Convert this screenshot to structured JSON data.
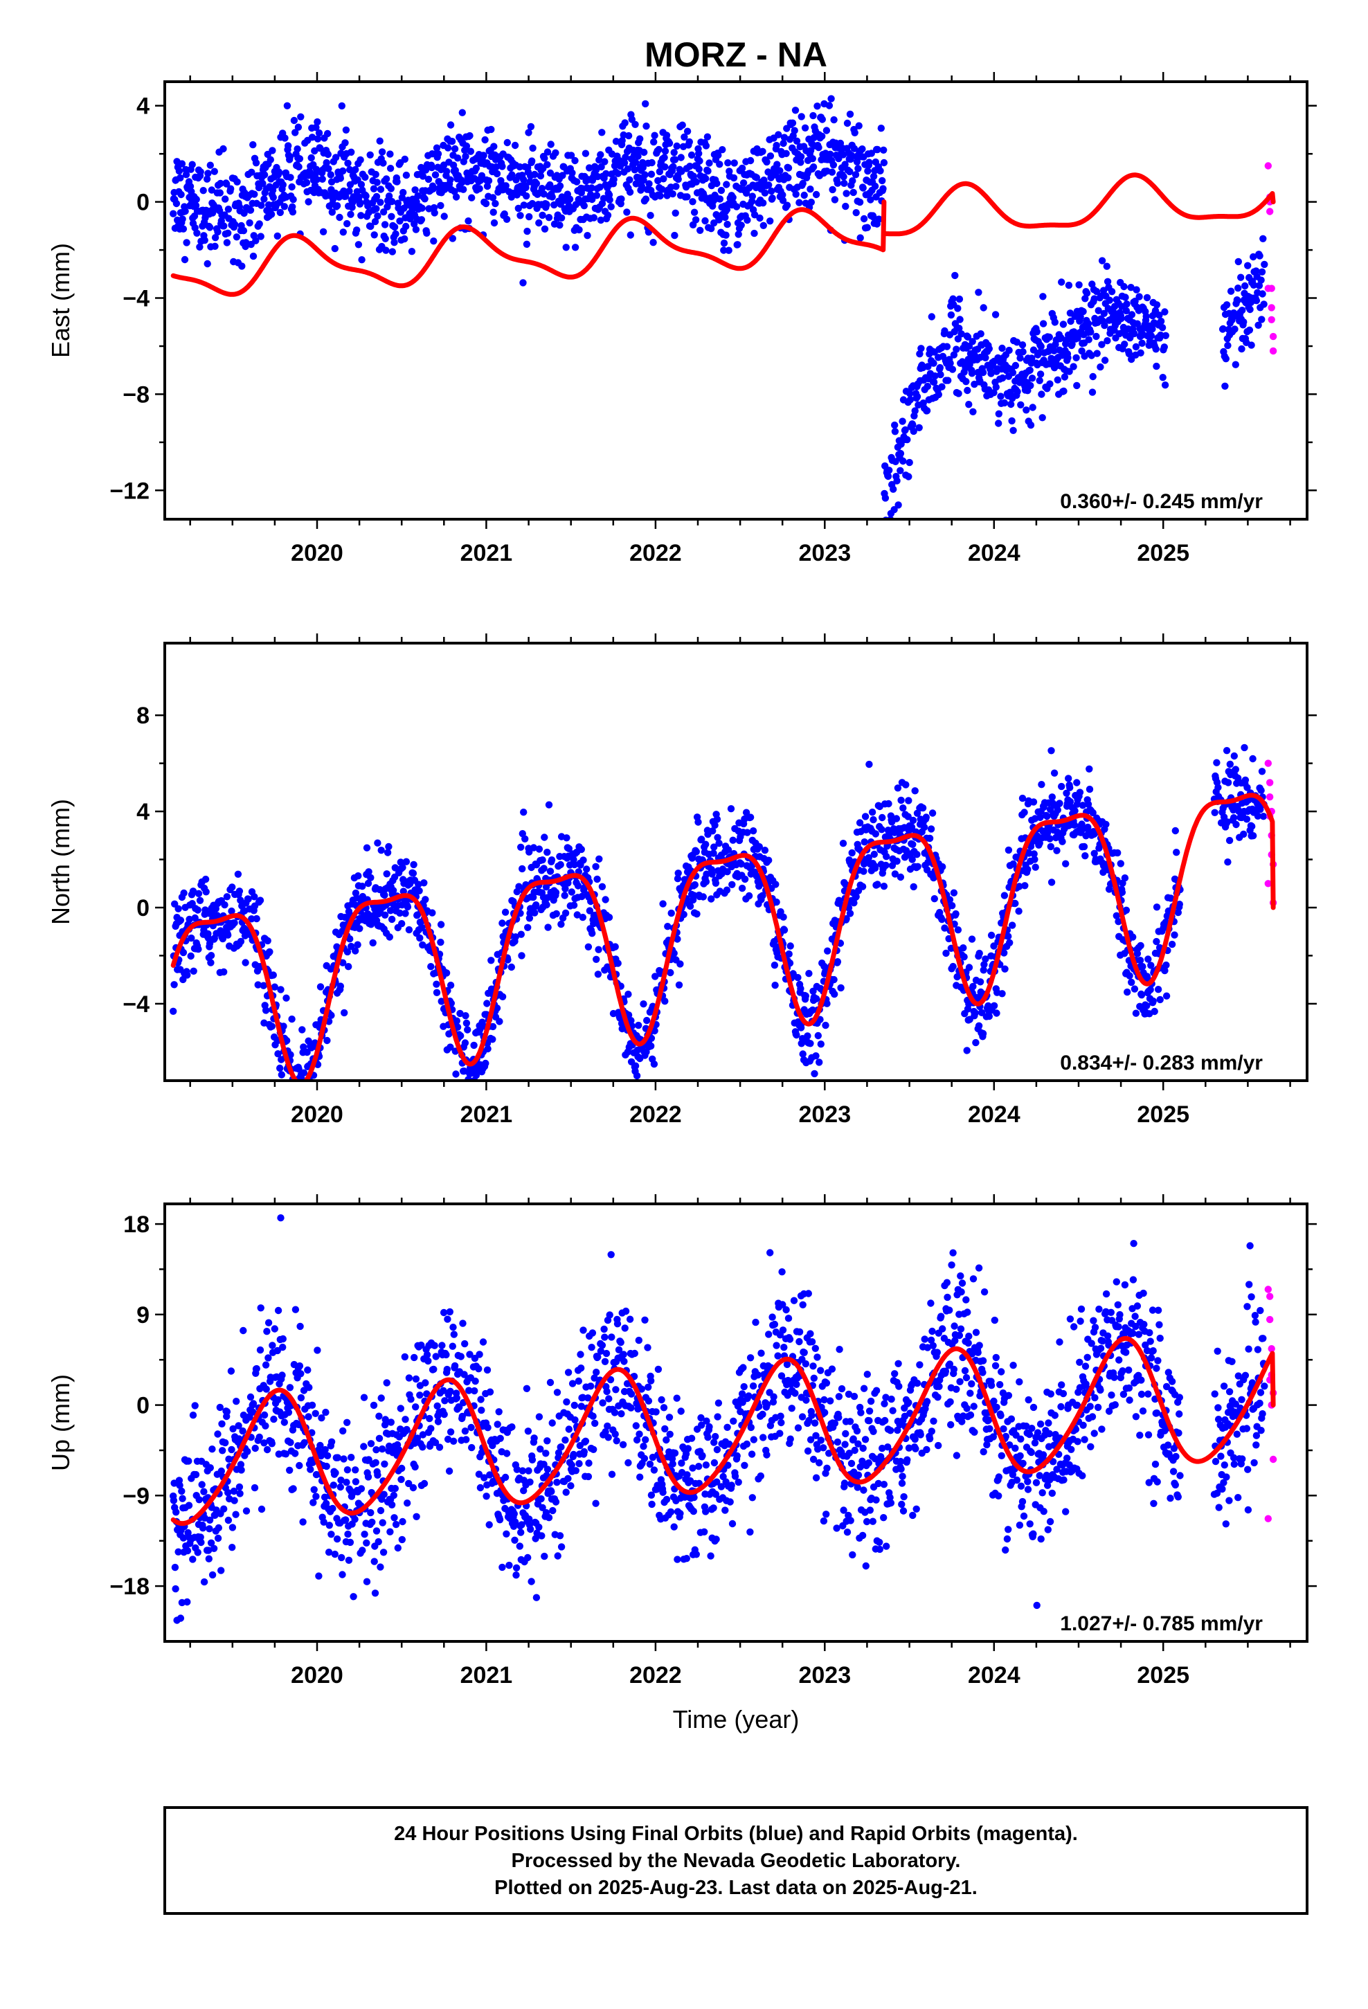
{
  "title": "MORZ - NA",
  "footer": {
    "line1": "24 Hour Positions Using Final Orbits (blue) and Rapid Orbits (magenta).",
    "line2": "Processed by the Nevada Geodetic Laboratory.",
    "line3": "Plotted on 2025-Aug-23. Last data on 2025-Aug-21."
  },
  "xlabel": "Time (year)",
  "colors": {
    "final": "#0000ff",
    "rapid": "#ff00ff",
    "model": "#ff0000",
    "frame": "#000000"
  },
  "chart_data": [
    {
      "type": "scatter",
      "component": "east",
      "ylabel": "East (mm)",
      "xlim": [
        2019.1,
        2025.85
      ],
      "ylim": [
        -13.2,
        5.0
      ],
      "xticks": [
        "2020",
        "2021",
        "2022",
        "2023",
        "2024",
        "2025"
      ],
      "yticks": [
        "4",
        "0",
        "−4",
        "−8",
        "−12"
      ],
      "yticks_values": [
        4,
        0,
        -4,
        -8,
        -12
      ],
      "rate_label": "0.360+/- 0.245 mm/yr",
      "series": [
        {
          "kind": "final",
          "x_range": [
            2019.15,
            2025.6
          ],
          "gap": [
            2025.02,
            2025.35
          ],
          "segments": [
            {
              "from": 2019.15,
              "to": 2023.35,
              "center_start": 0.3,
              "center_end": 1.2,
              "seasonal_amp": 0.8,
              "scatter": 1.0,
              "note": "annual bumps near 2019.9, 2020.9, 2021.7, 2022.6"
            },
            {
              "from": 2023.35,
              "to": 2023.55,
              "center_start": -12.5,
              "center_end": -8.0,
              "scatter": 1.0
            },
            {
              "from": 2023.55,
              "to": 2023.8,
              "center_start": -8.0,
              "center_end": -5.5,
              "scatter": 1.0
            },
            {
              "from": 2023.8,
              "to": 2024.2,
              "center_start": -6.5,
              "center_end": -7.5,
              "scatter": 0.9
            },
            {
              "from": 2024.2,
              "to": 2024.7,
              "center_start": -7.0,
              "center_end": -4.5,
              "scatter": 0.9
            },
            {
              "from": 2024.7,
              "to": 2025.02,
              "center_start": -4.8,
              "center_end": -5.6,
              "scatter": 0.8
            },
            {
              "from": 2025.35,
              "to": 2025.6,
              "center_start": -6.0,
              "center_end": -3.5,
              "scatter": 0.9
            }
          ]
        },
        {
          "kind": "rapid",
          "x": [
            2025.62,
            2025.63,
            2025.63,
            2025.64,
            2025.64,
            2025.65,
            2025.65,
            2025.62,
            2025.63,
            2025.64
          ],
          "y": [
            1.5,
            0.2,
            -0.4,
            -3.6,
            -4.4,
            -5.6,
            -6.2,
            -3.6,
            0.0,
            -4.9
          ]
        },
        {
          "kind": "model",
          "line": true,
          "segments": [
            {
              "from": 2019.15,
              "to": 2023.35,
              "offset": -1.9,
              "trend": 0.36,
              "annual_amp": 1.0,
              "annual_phase": 0.66,
              "semiannual_amp": 0.35,
              "semiannual_phase": 0.2
            },
            {
              "from": 2023.35,
              "to": 2025.65,
              "offset": -1.15,
              "trend": 0.36,
              "annual_amp": 0.95,
              "annual_phase": 0.58,
              "semiannual_amp": 0.3,
              "semiannual_phase": 0.2
            }
          ]
        }
      ]
    },
    {
      "type": "scatter",
      "component": "north",
      "ylabel": "North (mm)",
      "xlim": [
        2019.1,
        2025.85
      ],
      "ylim": [
        -7.2,
        11.0
      ],
      "xticks": [
        "2020",
        "2021",
        "2022",
        "2023",
        "2024",
        "2025"
      ],
      "yticks": [
        "8",
        "4",
        "0",
        "−4"
      ],
      "yticks_values": [
        8,
        4,
        0,
        -4
      ],
      "rate_label": "0.834+/- 0.283 mm/yr",
      "series": [
        {
          "kind": "final",
          "x_range": [
            2019.15,
            2025.6
          ],
          "gap": [
            2025.1,
            2025.3
          ],
          "scatter": 0.9,
          "follows_model": true
        },
        {
          "kind": "rapid",
          "x": [
            2025.62,
            2025.63,
            2025.63,
            2025.64,
            2025.64,
            2025.65,
            2025.65,
            2025.62,
            2025.63,
            2025.64
          ],
          "y": [
            6.0,
            4.6,
            3.8,
            3.0,
            2.2,
            1.8,
            0.2,
            1.0,
            5.2,
            4.0
          ]
        },
        {
          "kind": "model",
          "line": true,
          "segments": [
            {
              "from": 2019.15,
              "to": 2025.65,
              "offset": -0.9,
              "trend": 0.834,
              "annual_amp": 3.6,
              "annual_phase": 0.16,
              "semiannual_amp": 1.1,
              "semiannual_phase": 0.03
            }
          ]
        }
      ]
    },
    {
      "type": "scatter",
      "component": "up",
      "ylabel": "Up (mm)",
      "xlim": [
        2019.1,
        2025.85
      ],
      "ylim": [
        -23.5,
        20.0
      ],
      "xticks": [
        "2020",
        "2021",
        "2022",
        "2023",
        "2024",
        "2025"
      ],
      "yticks": [
        "18",
        "9",
        "0",
        "−9",
        "−18"
      ],
      "yticks_values": [
        18,
        9,
        0,
        -9,
        -18
      ],
      "rate_label": "1.027+/- 0.785 mm/yr",
      "series": [
        {
          "kind": "final",
          "x_range": [
            2019.15,
            2025.6
          ],
          "gap": [
            2025.1,
            2025.3
          ],
          "scatter": 4.0,
          "follows_model": true
        },
        {
          "kind": "rapid",
          "x": [
            2025.62,
            2025.63,
            2025.63,
            2025.64,
            2025.64,
            2025.65,
            2025.65,
            2025.62,
            2025.63,
            2025.64
          ],
          "y": [
            11.5,
            10.8,
            8.5,
            5.6,
            3.0,
            1.2,
            -5.4,
            -11.3,
            2.5,
            0.0
          ]
        },
        {
          "kind": "model",
          "line": true,
          "segments": [
            {
              "from": 2019.15,
              "to": 2025.65,
              "offset": -3.0,
              "trend": 1.027,
              "annual_amp": 6.2,
              "annual_phase": 0.5,
              "semiannual_amp": 0.8,
              "semiannual_phase": 0.2
            }
          ]
        }
      ]
    }
  ]
}
